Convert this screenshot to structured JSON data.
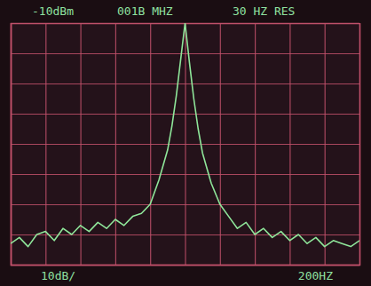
{
  "chart_data": {
    "type": "line",
    "annotations": [
      "-10dBm",
      "001B MHZ",
      "30 HZ RES",
      "10dB/",
      "200HZ"
    ],
    "x": [
      -1000,
      -950,
      -900,
      -850,
      -800,
      -750,
      -700,
      -650,
      -600,
      -550,
      -500,
      -450,
      -400,
      -350,
      -300,
      -250,
      -200,
      -150,
      -100,
      -75,
      -50,
      -25,
      0,
      25,
      50,
      75,
      100,
      150,
      200,
      250,
      300,
      350,
      400,
      450,
      500,
      550,
      600,
      650,
      700,
      750,
      800,
      850,
      900,
      950,
      1000
    ],
    "values": [
      -83,
      -81,
      -84,
      -80,
      -79,
      -82,
      -78,
      -80,
      -77,
      -79,
      -76,
      -78,
      -75,
      -77,
      -74,
      -73,
      -70,
      -62,
      -52,
      -44,
      -34,
      -22,
      -10,
      -23,
      -35,
      -45,
      -53,
      -63,
      -70,
      -74,
      -78,
      -76,
      -80,
      -78,
      -81,
      -79,
      -82,
      -80,
      -83,
      -81,
      -84,
      -82,
      -83,
      -84,
      -82
    ],
    "color": "#8fe69a",
    "xlim": [
      -1000,
      1000
    ],
    "xticks": [
      -1000,
      -800,
      -600,
      -400,
      -200,
      0,
      200,
      400,
      600,
      800,
      1000
    ],
    "ylim": [
      -90,
      -10
    ],
    "yticks": [
      -90,
      -80,
      -70,
      -60,
      -50,
      -40,
      -30,
      -20,
      -10
    ],
    "grid": true,
    "tick_labels": false
  }
}
